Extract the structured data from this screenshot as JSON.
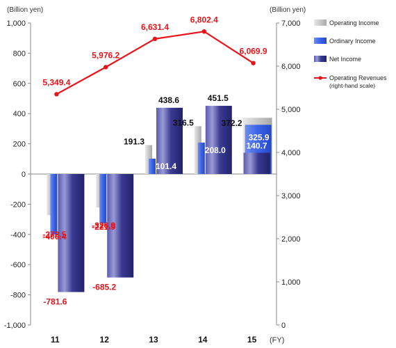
{
  "chart_data": {
    "type": "bar",
    "categories": [
      "11",
      "12",
      "13",
      "14",
      "15"
    ],
    "x_unit": "(FY)",
    "left_axis": {
      "unit": "(Billion yen)",
      "ylim": [
        -1000,
        1000
      ],
      "ticks": [
        "1,000",
        "800",
        "600",
        "400",
        "200",
        "0",
        "-200",
        "-400",
        "-600",
        "-800",
        "-1,000"
      ]
    },
    "right_axis": {
      "unit": "(Billion yen)",
      "ylim": [
        0,
        7000
      ],
      "ticks": [
        "7,000",
        "6,000",
        "5,000",
        "4,000",
        "3,000",
        "2,000",
        "1,000",
        "0"
      ]
    },
    "series": [
      {
        "name": "Operating Income",
        "kind": "bar",
        "axis": "left",
        "color": "#bfbfbf",
        "values": [
          -272.5,
          -221.9,
          191.3,
          316.5,
          372.2
        ],
        "labels": [
          "-272.5",
          "-221.9",
          "191.3",
          "316.5",
          "372.2"
        ]
      },
      {
        "name": "Ordinary Income",
        "kind": "bar",
        "axis": "left",
        "color": "#3c64e6",
        "values": [
          -400.4,
          -326.9,
          101.4,
          208.0,
          325.9
        ],
        "labels": [
          "-400.4",
          "-326.9",
          "101.4",
          "208.0",
          "325.9"
        ]
      },
      {
        "name": "Net Income",
        "kind": "bar",
        "axis": "left",
        "color": "#2b2b7e",
        "values": [
          -781.6,
          -685.2,
          438.6,
          451.5,
          140.7
        ],
        "labels": [
          "-781.6",
          "-685.2",
          "438.6",
          "451.5",
          "140.7"
        ]
      },
      {
        "name": "Operating Revenues",
        "name_line2": "(right-hand scale)",
        "kind": "line",
        "axis": "right",
        "color": "#e8141a",
        "values": [
          5349.4,
          5976.2,
          6631.4,
          6802.4,
          6069.9
        ],
        "labels": [
          "5,349.4",
          "5,976.2",
          "6,631.4",
          "6,802.4",
          "6,069.9"
        ]
      }
    ],
    "legend_position": "right"
  }
}
